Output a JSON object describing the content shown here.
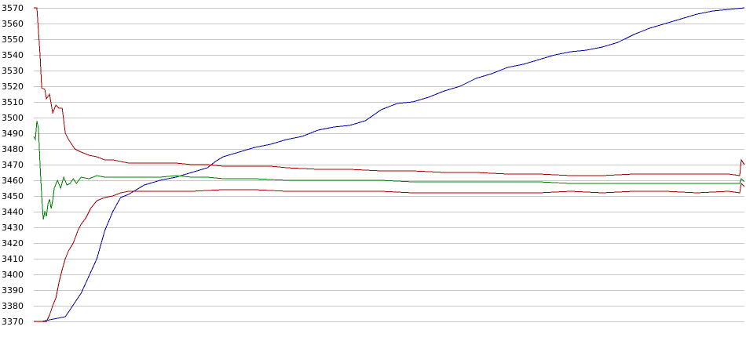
{
  "chart_data": {
    "type": "line",
    "title": "",
    "xlabel": "",
    "ylabel": "",
    "ylim": [
      3370,
      3570
    ],
    "xlim": [
      0,
      450
    ],
    "grid": true,
    "legend": "none",
    "yticks": [
      3370,
      3380,
      3390,
      3400,
      3410,
      3420,
      3430,
      3440,
      3450,
      3460,
      3470,
      3480,
      3490,
      3500,
      3510,
      3520,
      3530,
      3540,
      3550,
      3560,
      3570
    ],
    "series": [
      {
        "color": "#0000aa",
        "points": [
          [
            0,
            3370
          ],
          [
            5,
            3370
          ],
          [
            10,
            3371
          ],
          [
            20,
            3373
          ],
          [
            30,
            3388
          ],
          [
            40,
            3410
          ],
          [
            45,
            3428
          ],
          [
            50,
            3440
          ],
          [
            55,
            3449
          ],
          [
            60,
            3451
          ],
          [
            70,
            3457
          ],
          [
            80,
            3460
          ],
          [
            90,
            3462
          ],
          [
            100,
            3465
          ],
          [
            110,
            3468
          ],
          [
            115,
            3472
          ],
          [
            120,
            3475
          ],
          [
            130,
            3478
          ],
          [
            140,
            3481
          ],
          [
            150,
            3483
          ],
          [
            160,
            3486
          ],
          [
            170,
            3488
          ],
          [
            180,
            3492
          ],
          [
            190,
            3494
          ],
          [
            200,
            3495
          ],
          [
            210,
            3498
          ],
          [
            220,
            3505
          ],
          [
            230,
            3509
          ],
          [
            240,
            3510
          ],
          [
            250,
            3513
          ],
          [
            260,
            3517
          ],
          [
            270,
            3520
          ],
          [
            280,
            3525
          ],
          [
            290,
            3528
          ],
          [
            300,
            3532
          ],
          [
            310,
            3534
          ],
          [
            320,
            3537
          ],
          [
            330,
            3540
          ],
          [
            340,
            3542
          ],
          [
            350,
            3543
          ],
          [
            360,
            3545
          ],
          [
            370,
            3548
          ],
          [
            380,
            3553
          ],
          [
            390,
            3557
          ],
          [
            400,
            3560
          ],
          [
            410,
            3563
          ],
          [
            420,
            3566
          ],
          [
            430,
            3568
          ],
          [
            440,
            3569
          ],
          [
            450,
            3570
          ]
        ]
      },
      {
        "color": "#aa0000",
        "points": [
          [
            0,
            3570
          ],
          [
            2,
            3570
          ],
          [
            4,
            3540
          ],
          [
            5,
            3519
          ],
          [
            7,
            3518
          ],
          [
            8,
            3512
          ],
          [
            10,
            3515
          ],
          [
            12,
            3503
          ],
          [
            14,
            3508
          ],
          [
            16,
            3506
          ],
          [
            18,
            3506
          ],
          [
            20,
            3490
          ],
          [
            22,
            3486
          ],
          [
            24,
            3483
          ],
          [
            26,
            3480
          ],
          [
            30,
            3478
          ],
          [
            35,
            3476
          ],
          [
            40,
            3475
          ],
          [
            45,
            3473
          ],
          [
            50,
            3473
          ],
          [
            55,
            3472
          ],
          [
            60,
            3471
          ],
          [
            70,
            3471
          ],
          [
            80,
            3471
          ],
          [
            90,
            3471
          ],
          [
            100,
            3470
          ],
          [
            110,
            3470
          ],
          [
            120,
            3469
          ],
          [
            130,
            3469
          ],
          [
            140,
            3469
          ],
          [
            150,
            3469
          ],
          [
            160,
            3468
          ],
          [
            180,
            3467
          ],
          [
            200,
            3467
          ],
          [
            220,
            3466
          ],
          [
            240,
            3466
          ],
          [
            260,
            3465
          ],
          [
            280,
            3465
          ],
          [
            300,
            3464
          ],
          [
            320,
            3464
          ],
          [
            340,
            3463
          ],
          [
            360,
            3463
          ],
          [
            380,
            3464
          ],
          [
            400,
            3464
          ],
          [
            420,
            3464
          ],
          [
            440,
            3464
          ],
          [
            447,
            3463
          ],
          [
            448,
            3473
          ],
          [
            450,
            3470
          ]
        ]
      },
      {
        "color": "#aa0000",
        "points": [
          [
            0,
            3370
          ],
          [
            8,
            3370
          ],
          [
            10,
            3374
          ],
          [
            12,
            3380
          ],
          [
            14,
            3385
          ],
          [
            16,
            3395
          ],
          [
            18,
            3403
          ],
          [
            20,
            3410
          ],
          [
            22,
            3415
          ],
          [
            25,
            3420
          ],
          [
            28,
            3428
          ],
          [
            30,
            3432
          ],
          [
            33,
            3436
          ],
          [
            36,
            3442
          ],
          [
            40,
            3447
          ],
          [
            45,
            3449
          ],
          [
            50,
            3450
          ],
          [
            55,
            3452
          ],
          [
            60,
            3453
          ],
          [
            70,
            3453
          ],
          [
            80,
            3453
          ],
          [
            90,
            3453
          ],
          [
            100,
            3453
          ],
          [
            120,
            3454
          ],
          [
            140,
            3454
          ],
          [
            160,
            3453
          ],
          [
            180,
            3453
          ],
          [
            200,
            3453
          ],
          [
            220,
            3453
          ],
          [
            240,
            3452
          ],
          [
            260,
            3452
          ],
          [
            280,
            3452
          ],
          [
            300,
            3452
          ],
          [
            320,
            3452
          ],
          [
            340,
            3453
          ],
          [
            360,
            3452
          ],
          [
            380,
            3453
          ],
          [
            400,
            3453
          ],
          [
            420,
            3452
          ],
          [
            440,
            3453
          ],
          [
            447,
            3452
          ],
          [
            448,
            3458
          ],
          [
            450,
            3456
          ]
        ]
      },
      {
        "color": "#008000",
        "points": [
          [
            0,
            3488
          ],
          [
            1,
            3486
          ],
          [
            2,
            3498
          ],
          [
            3,
            3493
          ],
          [
            4,
            3470
          ],
          [
            5,
            3450
          ],
          [
            6,
            3435
          ],
          [
            7,
            3440
          ],
          [
            8,
            3437
          ],
          [
            9,
            3445
          ],
          [
            10,
            3448
          ],
          [
            11,
            3442
          ],
          [
            12,
            3447
          ],
          [
            13,
            3455
          ],
          [
            15,
            3460
          ],
          [
            17,
            3455
          ],
          [
            19,
            3462
          ],
          [
            21,
            3457
          ],
          [
            23,
            3458
          ],
          [
            25,
            3461
          ],
          [
            27,
            3458
          ],
          [
            30,
            3462
          ],
          [
            35,
            3461
          ],
          [
            40,
            3463
          ],
          [
            45,
            3462
          ],
          [
            50,
            3462
          ],
          [
            60,
            3462
          ],
          [
            70,
            3462
          ],
          [
            80,
            3462
          ],
          [
            90,
            3463
          ],
          [
            100,
            3462
          ],
          [
            110,
            3462
          ],
          [
            120,
            3461
          ],
          [
            140,
            3461
          ],
          [
            160,
            3460
          ],
          [
            180,
            3460
          ],
          [
            200,
            3460
          ],
          [
            220,
            3460
          ],
          [
            240,
            3459
          ],
          [
            260,
            3459
          ],
          [
            280,
            3459
          ],
          [
            300,
            3459
          ],
          [
            320,
            3459
          ],
          [
            340,
            3458
          ],
          [
            360,
            3458
          ],
          [
            380,
            3458
          ],
          [
            400,
            3458
          ],
          [
            420,
            3458
          ],
          [
            440,
            3458
          ],
          [
            447,
            3458
          ],
          [
            448,
            3461
          ],
          [
            450,
            3459
          ]
        ]
      }
    ]
  }
}
